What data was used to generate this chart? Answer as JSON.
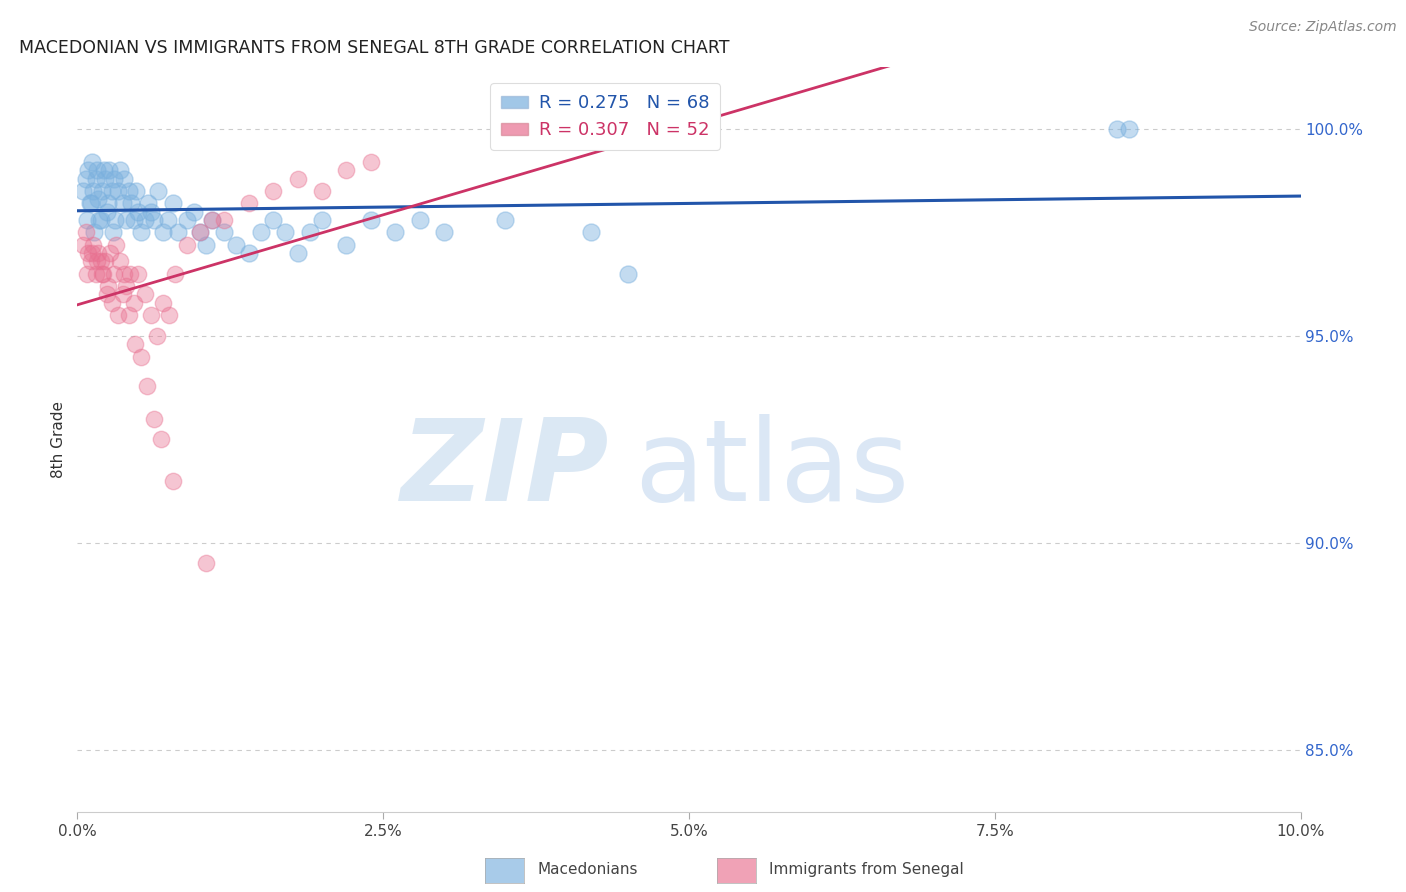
{
  "title": "MACEDONIAN VS IMMIGRANTS FROM SENEGAL 8TH GRADE CORRELATION CHART",
  "source": "Source: ZipAtlas.com",
  "ylabel": "8th Grade",
  "x_min": 0.0,
  "x_max": 10.0,
  "y_min": 83.5,
  "y_max": 101.5,
  "y_ticks": [
    85.0,
    90.0,
    95.0,
    100.0
  ],
  "x_ticks": [
    0.0,
    2.5,
    5.0,
    7.5,
    10.0
  ],
  "blue_label": "Macedonians",
  "pink_label": "Immigrants from Senegal",
  "blue_R": 0.275,
  "blue_N": 68,
  "pink_R": 0.307,
  "pink_N": 52,
  "blue_color": "#7ab0de",
  "pink_color": "#e87090",
  "blue_line_color": "#2255aa",
  "pink_line_color": "#cc3366",
  "blue_x": [
    0.05,
    0.07,
    0.09,
    0.1,
    0.12,
    0.13,
    0.15,
    0.16,
    0.17,
    0.18,
    0.2,
    0.22,
    0.23,
    0.25,
    0.26,
    0.28,
    0.3,
    0.31,
    0.33,
    0.35,
    0.37,
    0.38,
    0.4,
    0.42,
    0.44,
    0.46,
    0.48,
    0.5,
    0.52,
    0.55,
    0.58,
    0.6,
    0.63,
    0.66,
    0.7,
    0.74,
    0.78,
    0.82,
    0.9,
    0.95,
    1.0,
    1.05,
    1.1,
    1.2,
    1.3,
    1.4,
    1.5,
    1.6,
    1.7,
    1.8,
    1.9,
    2.0,
    2.2,
    2.4,
    2.6,
    2.8,
    3.0,
    3.5,
    4.2,
    4.5,
    8.5,
    8.6,
    0.08,
    0.11,
    0.14,
    0.19,
    0.24,
    0.29
  ],
  "blue_y": [
    98.5,
    98.8,
    99.0,
    98.2,
    99.2,
    98.5,
    98.8,
    99.0,
    98.3,
    97.8,
    98.5,
    99.0,
    98.8,
    98.2,
    99.0,
    98.5,
    98.8,
    97.8,
    98.5,
    99.0,
    98.2,
    98.8,
    97.8,
    98.5,
    98.2,
    97.8,
    98.5,
    98.0,
    97.5,
    97.8,
    98.2,
    98.0,
    97.8,
    98.5,
    97.5,
    97.8,
    98.2,
    97.5,
    97.8,
    98.0,
    97.5,
    97.2,
    97.8,
    97.5,
    97.2,
    97.0,
    97.5,
    97.8,
    97.5,
    97.0,
    97.5,
    97.8,
    97.2,
    97.8,
    97.5,
    97.8,
    97.5,
    97.8,
    97.5,
    96.5,
    100.0,
    100.0,
    97.8,
    98.2,
    97.5,
    97.8,
    98.0,
    97.5
  ],
  "pink_x": [
    0.05,
    0.07,
    0.09,
    0.11,
    0.13,
    0.15,
    0.17,
    0.19,
    0.21,
    0.23,
    0.25,
    0.27,
    0.3,
    0.32,
    0.35,
    0.38,
    0.4,
    0.43,
    0.46,
    0.5,
    0.55,
    0.6,
    0.65,
    0.7,
    0.75,
    0.8,
    0.9,
    1.0,
    1.1,
    1.2,
    1.4,
    1.6,
    1.8,
    2.0,
    2.2,
    2.4,
    0.08,
    0.12,
    0.16,
    0.2,
    0.24,
    0.28,
    0.33,
    0.37,
    0.42,
    0.47,
    0.52,
    0.57,
    0.63,
    0.68,
    0.78,
    1.05
  ],
  "pink_y": [
    97.2,
    97.5,
    97.0,
    96.8,
    97.2,
    96.5,
    97.0,
    96.8,
    96.5,
    96.8,
    96.2,
    97.0,
    96.5,
    97.2,
    96.8,
    96.5,
    96.2,
    96.5,
    95.8,
    96.5,
    96.0,
    95.5,
    95.0,
    95.8,
    95.5,
    96.5,
    97.2,
    97.5,
    97.8,
    97.8,
    98.2,
    98.5,
    98.8,
    98.5,
    99.0,
    99.2,
    96.5,
    97.0,
    96.8,
    96.5,
    96.0,
    95.8,
    95.5,
    96.0,
    95.5,
    94.8,
    94.5,
    93.8,
    93.0,
    92.5,
    91.5,
    89.5
  ]
}
